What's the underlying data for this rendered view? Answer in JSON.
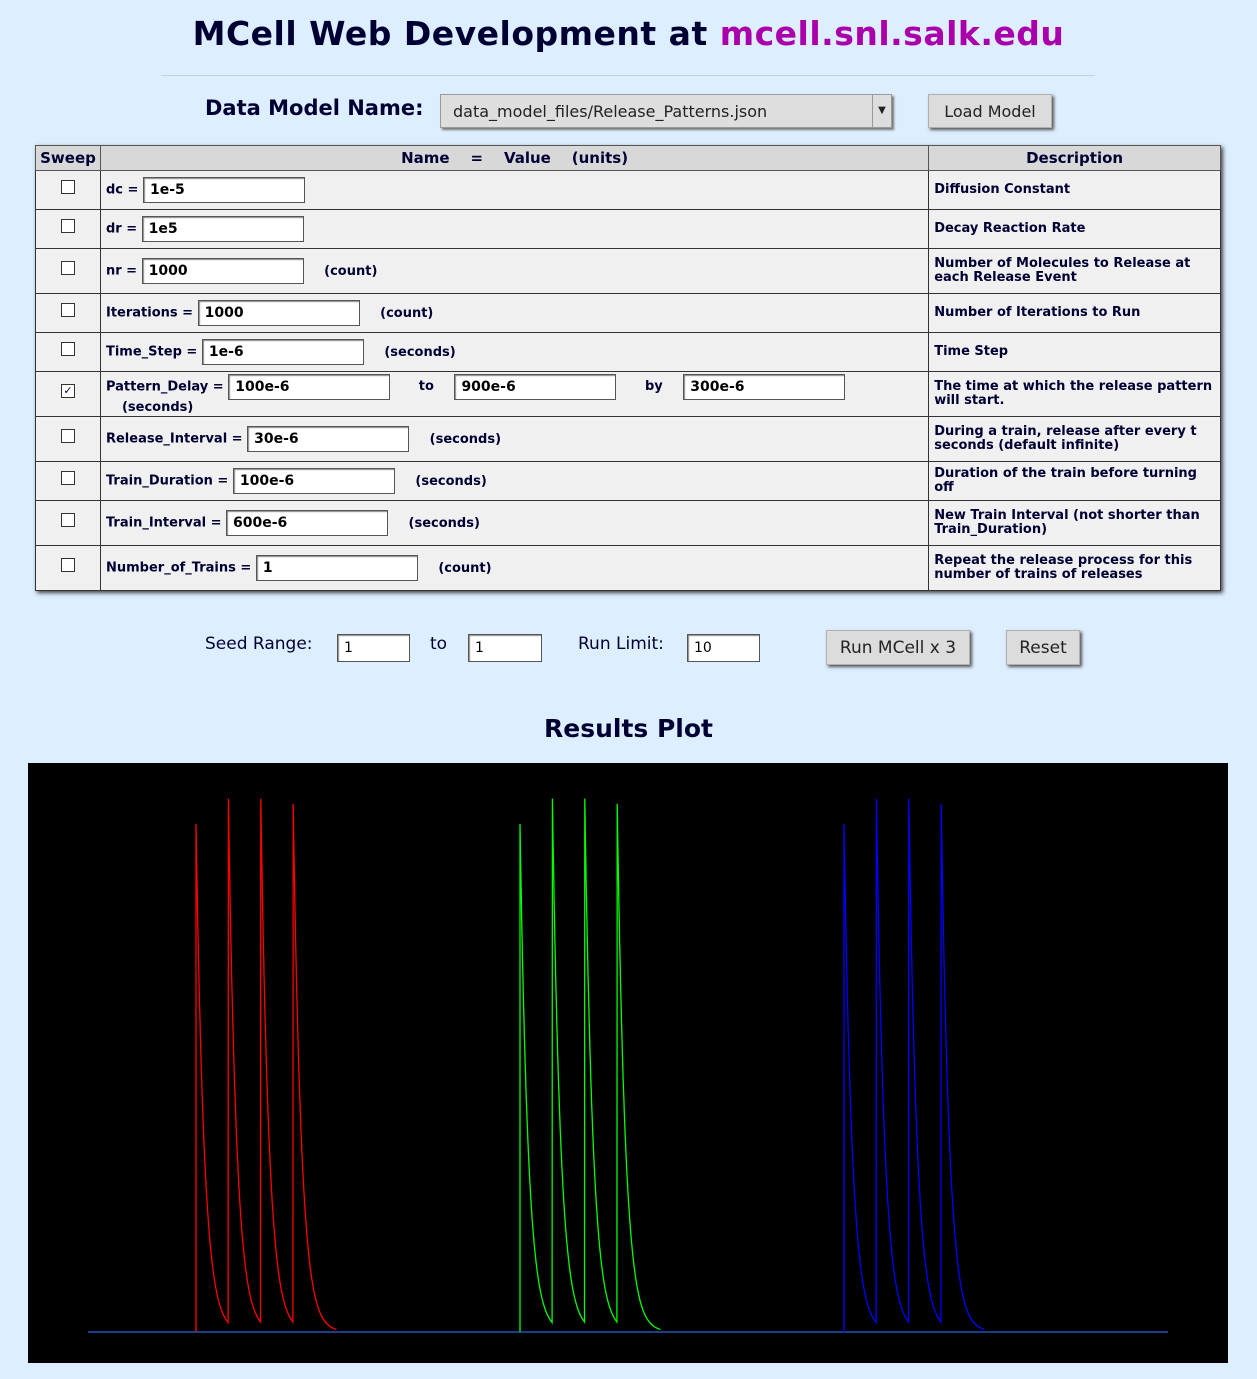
{
  "header": {
    "title_prefix": "MCell Web Development at ",
    "title_host": "mcell.snl.salk.edu"
  },
  "model": {
    "label": "Data Model Name:",
    "selected": "data_model_files/Release_Patterns.json",
    "load_label": "Load Model"
  },
  "table": {
    "headers": {
      "sweep": "Sweep",
      "name": "Name    =    Value    (units)",
      "desc": "Description"
    },
    "rows": [
      {
        "label": "dc =",
        "value": "1e-5",
        "units": "",
        "desc": "Diffusion Constant",
        "checked": false
      },
      {
        "label": "dr =",
        "value": "1e5",
        "units": "",
        "desc": "Decay Reaction Rate",
        "checked": false
      },
      {
        "label": "nr =",
        "value": "1000",
        "units": "(count)",
        "desc": "Number of Molecules to Release at each Release Event",
        "checked": false
      },
      {
        "label": "Iterations =",
        "value": "1000",
        "units": "(count)",
        "desc": "Number of Iterations to Run",
        "checked": false
      },
      {
        "label": "Time_Step =",
        "value": "1e-6",
        "units": "(seconds)",
        "desc": "Time Step",
        "checked": false
      },
      {
        "label": "Pattern_Delay =",
        "value": "100e-6",
        "to_label": "to",
        "to_value": "900e-6",
        "by_label": "by",
        "by_value": "300e-6",
        "units": "(seconds)",
        "desc": "The time at which the release pattern will start.",
        "checked": true
      },
      {
        "label": "Release_Interval =",
        "value": "30e-6",
        "units": "(seconds)",
        "desc": "During a train, release after every t seconds (default infinite)",
        "checked": false
      },
      {
        "label": "Train_Duration =",
        "value": "100e-6",
        "units": "(seconds)",
        "desc": "Duration of the train before turning off",
        "checked": false
      },
      {
        "label": "Train_Interval =",
        "value": "600e-6",
        "units": "(seconds)",
        "desc": "New Train Interval (not shorter than Train_Duration)",
        "checked": false
      },
      {
        "label": "Number_of_Trains =",
        "value": "1",
        "units": "(count)",
        "desc": "Repeat the release process for this number of trains of releases",
        "checked": false
      }
    ]
  },
  "controls": {
    "seed_label": "Seed Range:",
    "seed_from": "1",
    "seed_to_label": "to",
    "seed_to": "1",
    "run_limit_label": "Run Limit:",
    "run_limit": "10",
    "run_label": "Run MCell x 3",
    "reset_label": "Reset"
  },
  "plot": {
    "title": "Results Plot",
    "background": "#000000",
    "colors": {
      "red": "#ff0000",
      "green": "#00ff00",
      "blue": "#0000ff",
      "baseline": "#1e3c8c"
    }
  },
  "chart_data": {
    "type": "line",
    "title": "Results Plot",
    "xlabel": "",
    "ylabel": "",
    "grid": false,
    "series": [
      {
        "color": "#ff0000",
        "release_times": [
          100,
          130,
          160,
          190
        ],
        "peak_values": [
          1.0,
          1.05,
          1.05,
          1.04
        ]
      },
      {
        "color": "#00ff00",
        "release_times": [
          400,
          430,
          460,
          490
        ],
        "peak_values": [
          1.0,
          1.05,
          1.05,
          1.04
        ]
      },
      {
        "color": "#0000ff",
        "release_times": [
          700,
          730,
          760,
          790
        ],
        "peak_values": [
          1.0,
          1.05,
          1.05,
          1.04
        ]
      }
    ]
  }
}
